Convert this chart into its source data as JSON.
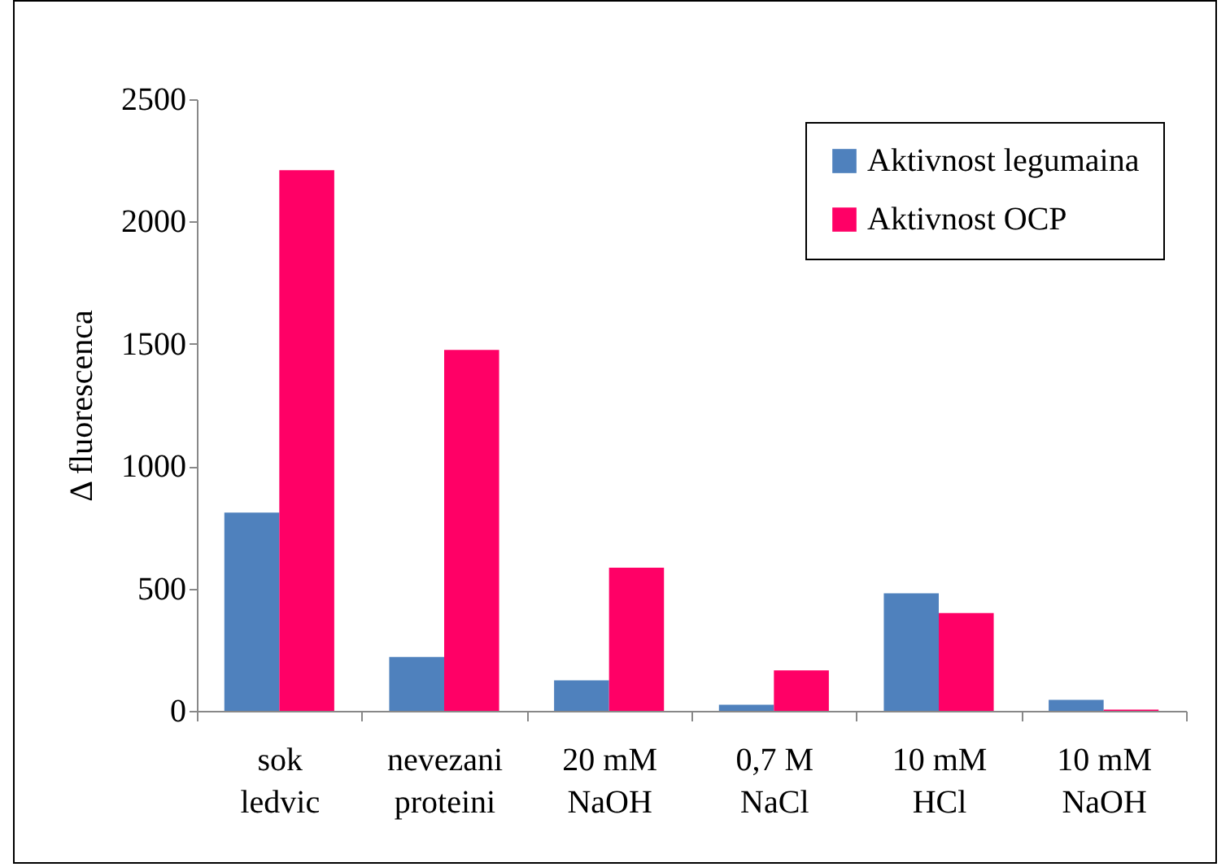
{
  "chart_data": {
    "type": "bar",
    "ylabel": "Δ fluorescenca",
    "categories": [
      "sok\nledvic",
      "nevezani\nproteini",
      "20 mM\nNaOH",
      "0,7 M\nNaCl",
      "10 mM\nHCl",
      "10 mM\nNaOH"
    ],
    "series": [
      {
        "name": "Aktivnost legumaina",
        "color": "#4f81bd",
        "values": [
          810,
          220,
          125,
          25,
          480,
          45
        ]
      },
      {
        "name": "Aktivnost OCP",
        "color": "#ff0066",
        "values": [
          2210,
          1475,
          585,
          165,
          400,
          5
        ]
      }
    ],
    "ylim": [
      0,
      2500
    ],
    "yticks": [
      0,
      500,
      1000,
      1500,
      2000,
      2500
    ],
    "grid": false,
    "legend": "top right"
  }
}
